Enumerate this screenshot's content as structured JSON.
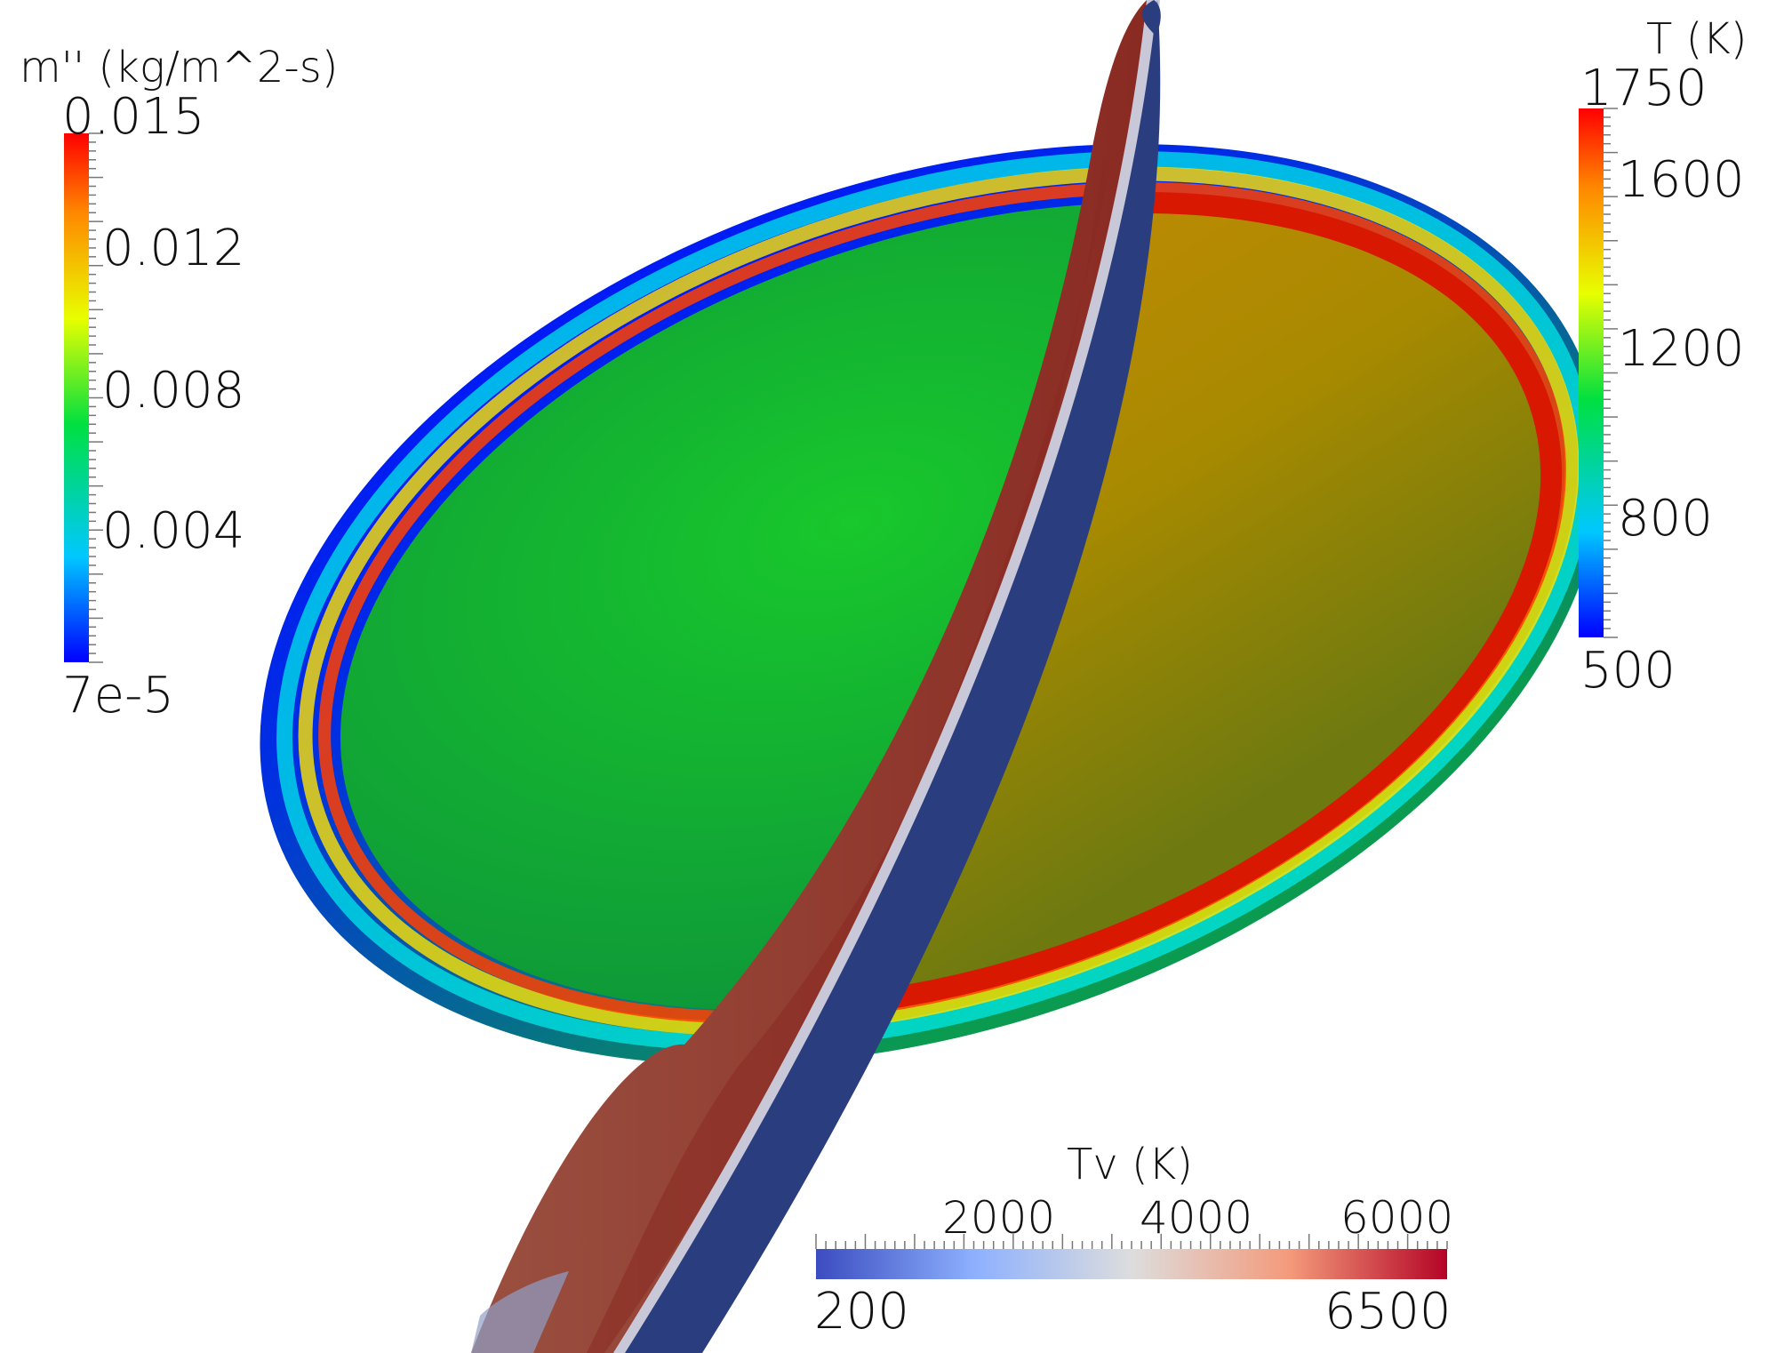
{
  "colorbars": {
    "mass_flux": {
      "title": "m'' (kg/m^2-s)",
      "max_label": "0.015",
      "min_label": "7e-5",
      "ticks": [
        "0.012",
        "0.008",
        "0.004"
      ]
    },
    "temperature": {
      "title": "T (K)",
      "max_label": "1750",
      "min_label": "500",
      "ticks": [
        "1600",
        "1200",
        "800"
      ]
    },
    "vib_temperature": {
      "title": "Tv (K)",
      "min_label": "200",
      "max_label": "6500",
      "ticks": [
        "2000",
        "4000",
        "6000"
      ]
    }
  },
  "colors": {
    "rainbow": [
      "#0000ff",
      "#00c8ff",
      "#00e040",
      "#e8ff00",
      "#ff8800",
      "#ff0000"
    ],
    "coolwarm": [
      "#3b4cc0",
      "#8db0fe",
      "#dddddd",
      "#f49a7b",
      "#b40426"
    ],
    "shock_blue": "#2a3d7e",
    "shock_red": "#8e3a2c"
  }
}
